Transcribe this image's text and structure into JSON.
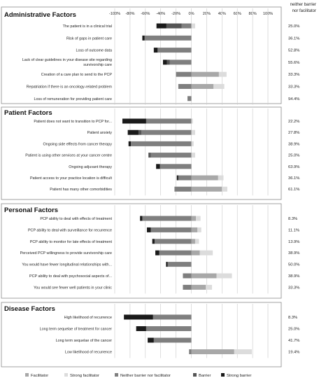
{
  "chart_data": {
    "type": "bar",
    "orientation": "horizontal",
    "stacking": "diverging",
    "xlim": [
      -100,
      100
    ],
    "xticks": [
      -100,
      -80,
      -60,
      -40,
      -20,
      0,
      20,
      40,
      60,
      80,
      100
    ],
    "xtick_labels": [
      "-100%",
      "-80%",
      "-60%",
      "-40%",
      "-20%",
      "0%",
      "20%",
      "40%",
      "60%",
      "80%",
      "100%"
    ],
    "right_column_header": [
      "neither barrier",
      "nor facilitator"
    ],
    "grid": true,
    "legend_position": "bottom",
    "series": [
      {
        "key": "fac",
        "name": "Facilitator",
        "color": "#a8a8a8"
      },
      {
        "key": "sfac",
        "name": "Strong facilitator",
        "color": "#dcdcdc"
      },
      {
        "key": "neu",
        "name": "Neither barrier nor facilitator",
        "color": "#7f7f7f"
      },
      {
        "key": "bar",
        "name": "Barrier",
        "color": "#555555"
      },
      {
        "key": "sbar",
        "name": "Strong barrier",
        "color": "#1a1a1a"
      }
    ],
    "sections": [
      {
        "title": "Administrative Factors",
        "rows": [
          {
            "label": "The patient is in a clinical trial",
            "sbar": 13,
            "bar": 20,
            "neu": 12.5,
            "fac": 0,
            "sfac": 5,
            "pct": "25.0%"
          },
          {
            "label": "Risk of gaps in patient care",
            "sbar": 3,
            "bar": 0,
            "neu": 61,
            "fac": 0,
            "sfac": 0,
            "pct": "36.1%"
          },
          {
            "label": "Loss of outcome data",
            "sbar": 5,
            "bar": 0,
            "neu": 44,
            "fac": 0,
            "sfac": 0,
            "pct": "52.8%"
          },
          {
            "label": "Lack of clear guidelines in your disease site regarding survivorship care",
            "sbar": 5,
            "bar": 4,
            "neu": 28,
            "fac": 0,
            "sfac": 0,
            "pct": "55.6%"
          },
          {
            "label": "Creation of a care plan to send to the PCP",
            "sbar": 0,
            "bar": 0,
            "neu": 20,
            "fac": 36,
            "sfac": 10,
            "pct": "33.3%"
          },
          {
            "label": "Repatriation if there is an oncology-related problem",
            "sbar": 0,
            "bar": 0,
            "neu": 17,
            "fac": 29,
            "sfac": 14,
            "pct": "33.3%"
          },
          {
            "label": "Loss of remuneration for providing patient care",
            "sbar": 0,
            "bar": 0,
            "neu": 5,
            "fac": 0,
            "sfac": 0,
            "pct": "94.4%"
          }
        ]
      },
      {
        "title": "Patient Factors",
        "rows": [
          {
            "label": "Patient does not want to transition to PCP for...",
            "sbar": 31,
            "bar": 0,
            "neu": 59,
            "fac": 0,
            "sfac": 2,
            "pct": "22.2%"
          },
          {
            "label": "Patient anxiety",
            "sbar": 14,
            "bar": 4,
            "neu": 65,
            "fac": 0,
            "sfac": 5,
            "pct": "27.8%"
          },
          {
            "label": "Ongoing side effects from cancer therapy",
            "sbar": 3,
            "bar": 0,
            "neu": 79,
            "fac": 0,
            "sfac": 3,
            "pct": "38.9%"
          },
          {
            "label": "Patient is using other services at your cancer centre",
            "sbar": 0,
            "bar": 3,
            "neu": 53,
            "fac": 0,
            "sfac": 5,
            "pct": "25.0%"
          },
          {
            "label": "Ongoing adjuvant therapy",
            "sbar": 5,
            "bar": 0,
            "neu": 41,
            "fac": 0,
            "sfac": 0,
            "pct": "63.9%"
          },
          {
            "label": "Patient access to your practice location is difficult",
            "sbar": 2,
            "bar": 0,
            "neu": 17,
            "fac": 35,
            "sfac": 7,
            "pct": "36.1%"
          },
          {
            "label": "Patient has many other comorbidities",
            "sbar": 0,
            "bar": 0,
            "neu": 22,
            "fac": 40,
            "sfac": 7,
            "pct": "61.1%"
          }
        ]
      },
      {
        "title": "Personal Factors",
        "rows": [
          {
            "label": "PCP ability to deal with effects of treatment",
            "sbar": 3,
            "bar": 0,
            "neu": 64,
            "fac": 6,
            "sfac": 6,
            "pct": "8.3%"
          },
          {
            "label": "PCP ability to deal with surveillance for recurrence",
            "sbar": 5,
            "bar": 0,
            "neu": 53,
            "fac": 8,
            "sfac": 5,
            "pct": "11.1%"
          },
          {
            "label": "PCP ability to monitor for late effects of treatment",
            "sbar": 3,
            "bar": 0,
            "neu": 48,
            "fac": 5,
            "sfac": 5,
            "pct": "13.9%"
          },
          {
            "label": "Perceived PCP willingness to provide survivorship care",
            "sbar": 5,
            "bar": 0,
            "neu": 42,
            "fac": 11,
            "sfac": 17,
            "pct": "38.9%"
          },
          {
            "label": "You would have fewer longitudinal relationships with...",
            "sbar": 2,
            "bar": 0,
            "neu": 31,
            "fac": 0,
            "sfac": 0,
            "pct": "50.0%"
          },
          {
            "label": "PCP ability to deal with psychosocial aspects of...",
            "sbar": 0,
            "bar": 0,
            "neu": 11,
            "fac": 33,
            "sfac": 20,
            "pct": "38.9%"
          },
          {
            "label": "You would see fewer well patients in your clinic",
            "sbar": 0,
            "bar": 0,
            "neu": 11,
            "fac": 19,
            "sfac": 8,
            "pct": "33.3%"
          }
        ]
      },
      {
        "title": "Disease Factors",
        "rows": [
          {
            "label": "High likelihood of recurrence",
            "sbar": 38,
            "bar": 0,
            "neu": 50,
            "fac": 0,
            "sfac": 0,
            "pct": "8.3%"
          },
          {
            "label": "Long term sequelae of treatment for cancer",
            "sbar": 13,
            "bar": 0,
            "neu": 59,
            "fac": 0,
            "sfac": 0,
            "pct": "25.0%"
          },
          {
            "label": "Long term sequelae of the cancer",
            "sbar": 8,
            "bar": 0,
            "neu": 49,
            "fac": 0,
            "sfac": 0,
            "pct": "41.7%"
          },
          {
            "label": "Low likelihood of recurrence",
            "sbar": 0,
            "bar": 0,
            "neu": 3,
            "fac": 56,
            "sfac": 23,
            "pct": "19.4%"
          }
        ]
      }
    ]
  }
}
